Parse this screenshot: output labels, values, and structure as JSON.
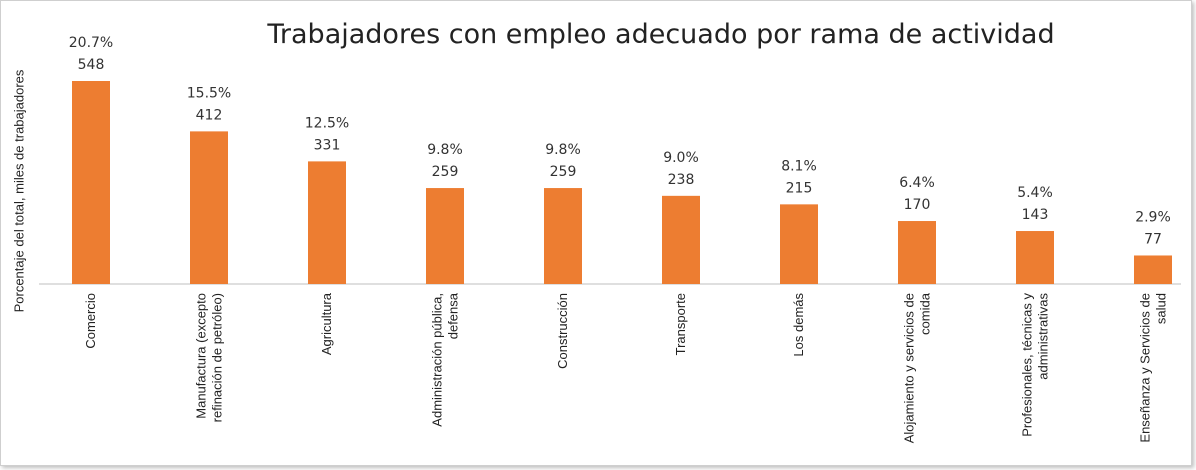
{
  "chart_data": {
    "type": "bar",
    "title": "Trabajadores con empleo adecuado por rama de actividad",
    "y_label": "Porcentaje del total, miles de trabajadores",
    "categories": [
      "Comercio",
      "Manufactura (excepto refinación de petróleo)",
      "Agricultura",
      "Administración pública, defensa",
      "Construcción",
      "Transporte",
      "Los demás",
      "Alojamiento y servicios de comida",
      "Profesionales, técnicas y administrativas",
      "Enseñanza y Servicios de salud"
    ],
    "values": [
      548,
      412,
      331,
      259,
      259,
      238,
      215,
      170,
      143,
      77
    ],
    "share_labels": [
      "20.7%",
      "15.5%",
      "12.5%",
      "9.8%",
      "9.8%",
      "9.0%",
      "8.1%",
      "6.4%",
      "5.4%",
      "2.9%"
    ],
    "color": "#ed7d31"
  }
}
